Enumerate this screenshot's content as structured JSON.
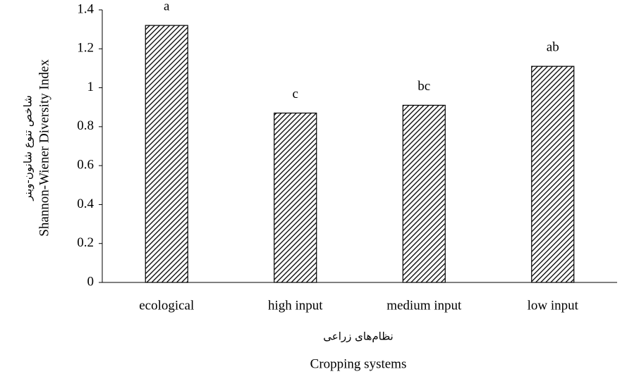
{
  "chart_data": {
    "type": "bar",
    "categories": [
      "ecological",
      "high input",
      "medium input",
      "low input"
    ],
    "values": [
      1.32,
      0.87,
      0.91,
      1.11
    ],
    "annotations": [
      "a",
      "c",
      "bc",
      "ab"
    ],
    "color": "#000000",
    "pattern": "hatch",
    "ylim": [
      0,
      1.4
    ],
    "yticks": [
      0,
      0.2,
      0.4,
      0.6,
      0.8,
      1,
      1.2,
      1.4
    ],
    "grid": false,
    "y_label": "Shannon-Wiener Diversity Index",
    "y_label_fa": "شاخص تنوع شانون-وینر",
    "x_label": "Cropping systems",
    "x_label_fa": "نظام‌های زراعی"
  }
}
